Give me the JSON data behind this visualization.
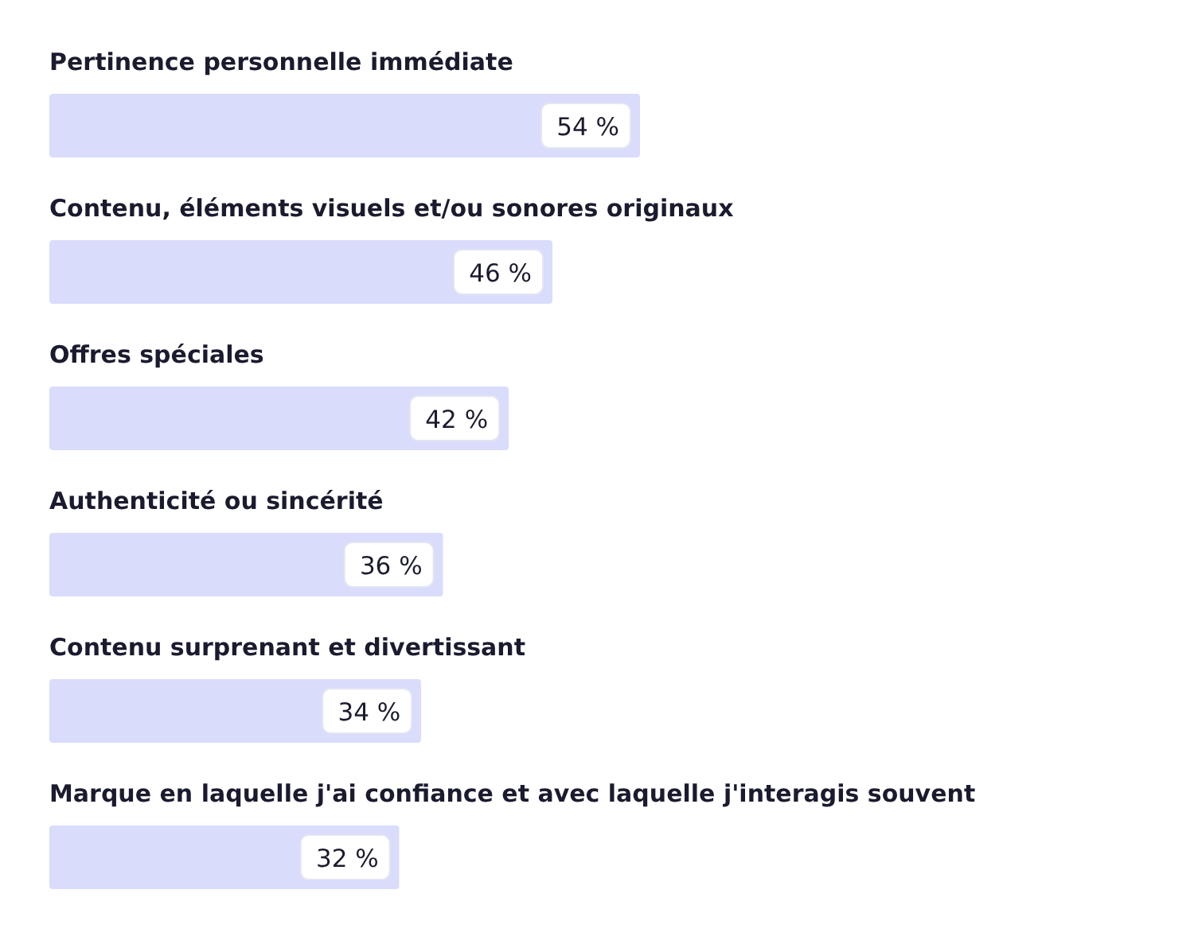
{
  "chart_data": {
    "type": "bar",
    "orientation": "horizontal",
    "categories": [
      "Pertinence personnelle immédiate",
      "Contenu, éléments visuels et/ou sonores originaux",
      "Offres spéciales",
      "Authenticité ou sincérité",
      "Contenu surprenant et divertissant",
      "Marque en laquelle j'ai confiance et avec laquelle j'interagis souvent"
    ],
    "values": [
      54,
      46,
      42,
      36,
      34,
      32
    ],
    "value_labels": [
      "54 %",
      "46 %",
      "42 %",
      "36 %",
      "34 %",
      "32 %"
    ],
    "color": "#d9dcfb"
  }
}
